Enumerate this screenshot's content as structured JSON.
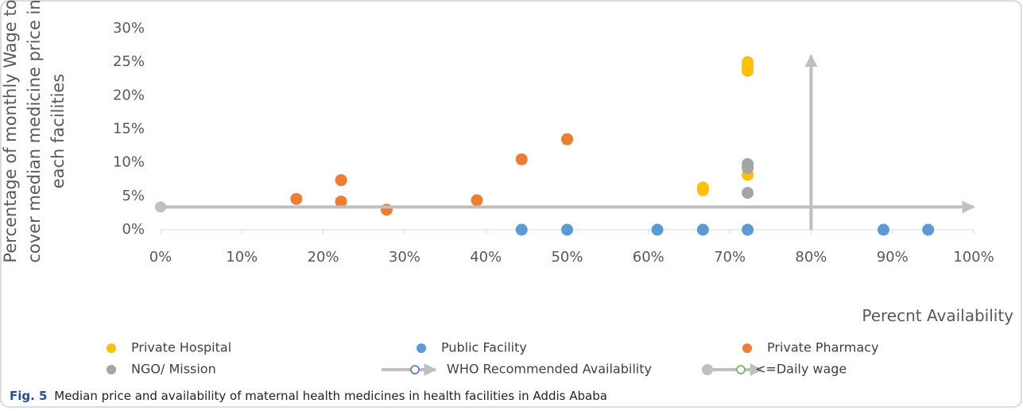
{
  "chart_data": {
    "type": "scatter",
    "ylabel": [
      "Percentage of monthly Wage to",
      "cover median medicine price in",
      "each facilities"
    ],
    "xlabel": "Perecnt Availability",
    "xlim": [
      0,
      100
    ],
    "xticks": [
      {
        "value": 0,
        "label": "0%"
      },
      {
        "value": 10,
        "label": "10%"
      },
      {
        "value": 20,
        "label": "20%"
      },
      {
        "value": 30,
        "label": "30%"
      },
      {
        "value": 40,
        "label": "40%"
      },
      {
        "value": 50,
        "label": "50%"
      },
      {
        "value": 60,
        "label": "60%"
      },
      {
        "value": 70,
        "label": "70%"
      },
      {
        "value": 80,
        "label": "80%"
      },
      {
        "value": 90,
        "label": "90%"
      },
      {
        "value": 100,
        "label": "100%"
      }
    ],
    "ylim": [
      0,
      30
    ],
    "yticks": [
      {
        "value": 0,
        "label": "0%"
      },
      {
        "value": 5,
        "label": "5%"
      },
      {
        "value": 10,
        "label": "10%"
      },
      {
        "value": 15,
        "label": "15%"
      },
      {
        "value": 20,
        "label": "20%"
      },
      {
        "value": 25,
        "label": "25%"
      },
      {
        "value": 30,
        "label": "30%"
      }
    ],
    "series": [
      {
        "name": "Private Hospital",
        "color": "#ffc000",
        "x": [
          72.2,
          72.2,
          72.2,
          72.2,
          66.7,
          66.7
        ],
        "values": [
          25.0,
          24.4,
          23.7,
          8.2,
          6.3,
          5.9
        ]
      },
      {
        "name": "Public Facility",
        "color": "#5b9bd5",
        "x": [
          44.4,
          50,
          61.1,
          66.7,
          72.2,
          88.9,
          94.4
        ],
        "values": [
          0,
          0,
          0,
          0,
          0,
          0,
          0
        ]
      },
      {
        "name": "Private Pharmacy",
        "color": "#ed7d31",
        "x": [
          16.7,
          22.2,
          22.2,
          27.8,
          38.9,
          44.4,
          50,
          50
        ],
        "values": [
          4.6,
          7.4,
          4.2,
          3.0,
          4.4,
          10.5,
          13.5,
          13.5
        ]
      },
      {
        "name": "NGO/ Mission",
        "color": "#a5a5a5",
        "x": [
          72.2,
          72.2,
          72.2
        ],
        "values": [
          9.8,
          9.2,
          5.5
        ]
      },
      {
        "name": "WHO Recommended Availability",
        "kind": "arrow",
        "color": "#bfbfbf",
        "marker_color": "#4472c4",
        "x": [
          80,
          80
        ],
        "values": [
          0,
          26
        ]
      },
      {
        "name": "<=Daily wage",
        "kind": "arrow",
        "color": "#bfbfbf",
        "marker_color": "#70ad47",
        "start_marker": true,
        "x": [
          0,
          100
        ],
        "values": [
          3.4,
          3.4
        ]
      }
    ],
    "caption_label": "Fig. 5",
    "caption": "Median price and availability of maternal health medicines in health facilities in Addis Ababa"
  }
}
